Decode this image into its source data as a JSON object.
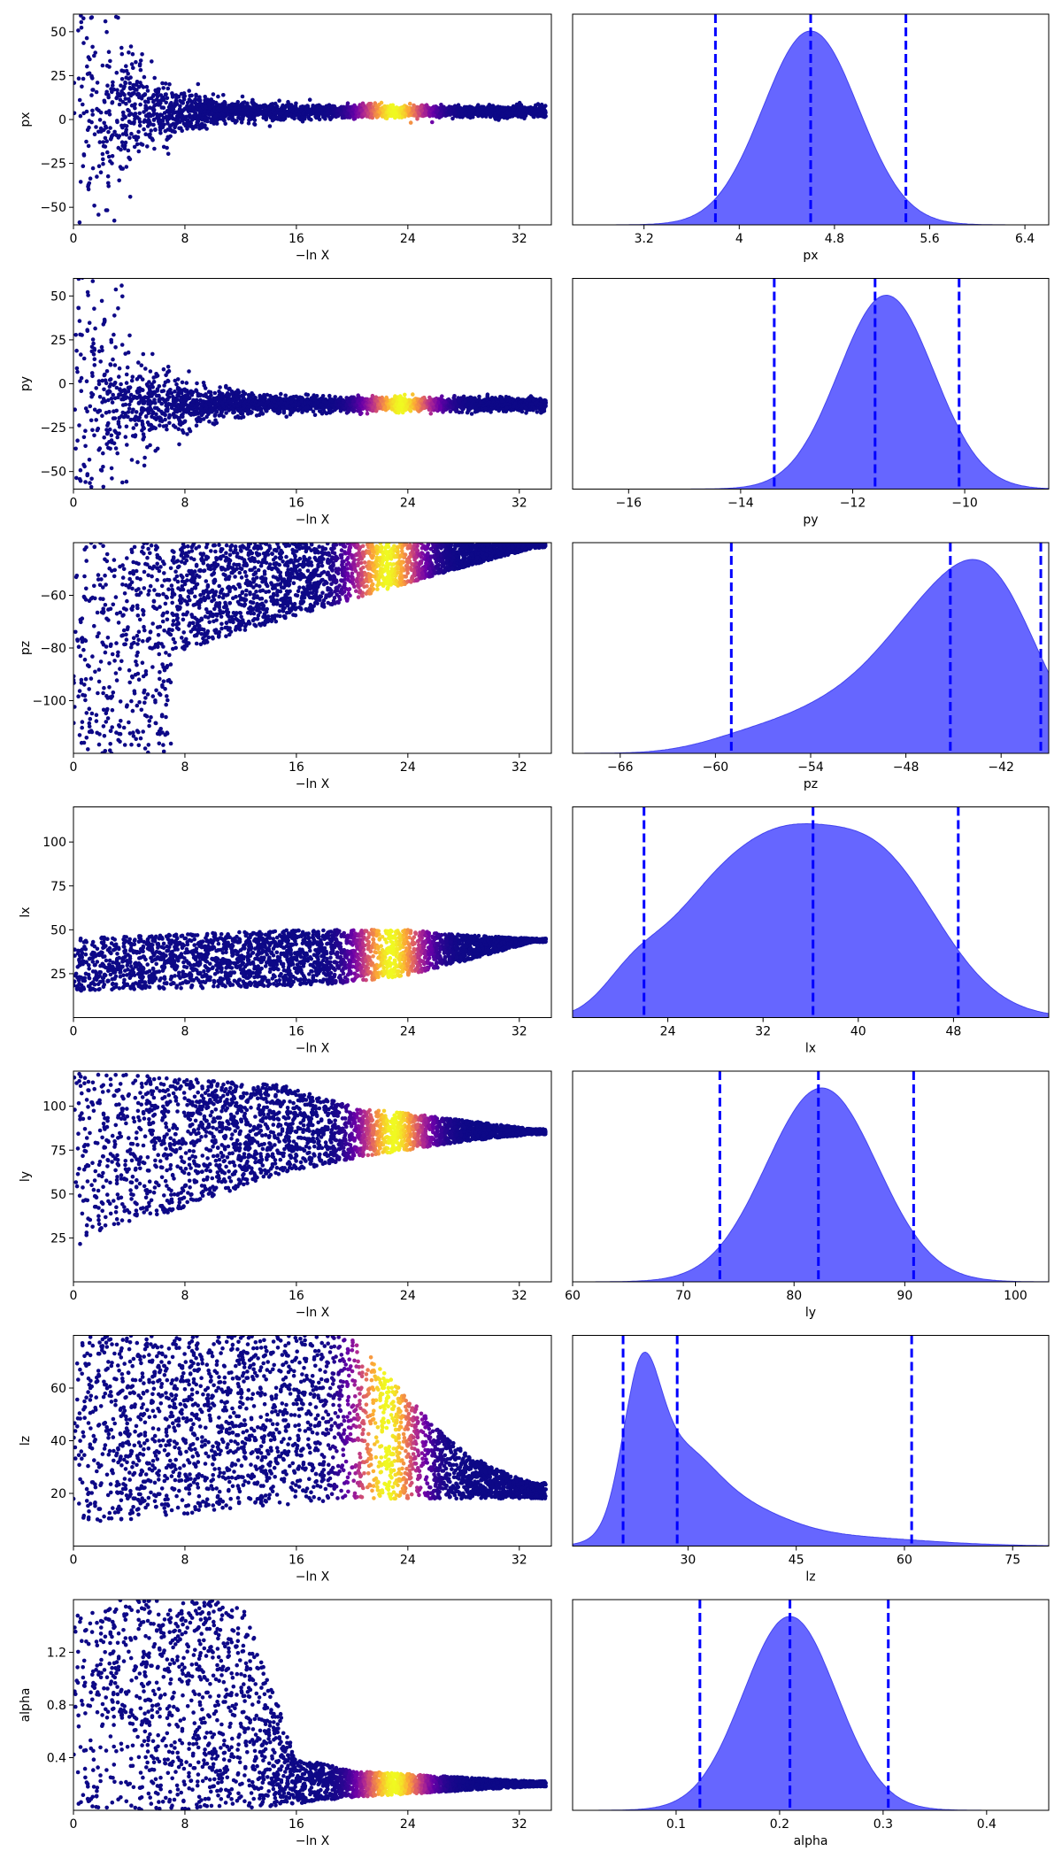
{
  "chart_data": {
    "type": "scatter",
    "description": "Nested sampling trace plots (left) and posterior marginal densities (right)",
    "trace_xlabel": "−ln X",
    "trace_xlim": [
      0,
      34.3
    ],
    "trace_xticks": [
      0,
      8,
      16,
      24,
      32
    ],
    "colormap": [
      "#0d0887",
      "#6a00a8",
      "#b12a90",
      "#e16462",
      "#fca636",
      "#f0f921"
    ],
    "fill_color": "#6666ff",
    "quantile_line_color": "#0000ff",
    "parameters": [
      {
        "name": "px",
        "trace_ylim": [
          -60,
          60
        ],
        "trace_yticks": [
          -50,
          -25,
          0,
          25,
          50
        ],
        "trace_shape": "converge",
        "trace_final": 4.6,
        "trace_final_spread": 1.5,
        "peak_lnx": 23.0,
        "hist_xlim": [
          2.6,
          6.6
        ],
        "hist_xticks": [
          3.2,
          4.0,
          4.8,
          5.6,
          6.4
        ],
        "quantiles": [
          3.8,
          4.6,
          5.4
        ],
        "density_peaks": [
          [
            4.6,
            0.4,
            1.0
          ]
        ]
      },
      {
        "name": "py",
        "trace_ylim": [
          -60,
          60
        ],
        "trace_yticks": [
          -50,
          -25,
          0,
          25,
          50
        ],
        "trace_shape": "converge",
        "trace_final": -11.6,
        "trace_final_spread": 1.8,
        "peak_lnx": 23.5,
        "hist_xlim": [
          -17,
          -8.5
        ],
        "hist_xticks": [
          -16,
          -14,
          -12,
          -10
        ],
        "quantiles": [
          -13.4,
          -11.6,
          -10.1
        ],
        "density_peaks": [
          [
            -11.4,
            0.85,
            1.0
          ]
        ]
      },
      {
        "name": "pz",
        "trace_ylim": [
          -120,
          -40
        ],
        "trace_yticks": [
          -100,
          -80,
          -60
        ],
        "trace_shape": "floor-rise",
        "peak_lnx": 22.5,
        "hist_xlim": [
          -69,
          -39
        ],
        "hist_xticks": [
          -66,
          -60,
          -54,
          -48,
          -42
        ],
        "quantiles": [
          -59,
          -45.2,
          -39.5
        ],
        "density_peaks": [
          [
            -42.5,
            3.0,
            0.85
          ],
          [
            -47,
            3.0,
            0.5
          ],
          [
            -52,
            3.5,
            0.25
          ],
          [
            -58,
            3.0,
            0.08
          ]
        ]
      },
      {
        "name": "lx",
        "trace_ylim": [
          0,
          120
        ],
        "trace_yticks": [
          25,
          50,
          75,
          100
        ],
        "trace_shape": "band",
        "trace_band": [
          [
            0,
            15,
            45
          ],
          [
            16,
            18,
            50
          ],
          [
            20,
            20,
            50
          ],
          [
            24,
            24,
            50
          ],
          [
            28,
            32,
            47
          ],
          [
            33,
            43,
            45
          ]
        ],
        "peak_lnx": 22.8,
        "hist_xlim": [
          16,
          56
        ],
        "hist_xticks": [
          24,
          32,
          40,
          48
        ],
        "quantiles": [
          22,
          36.2,
          48.4
        ],
        "density_peaks": [
          [
            41,
            5.5,
            0.9
          ],
          [
            33,
            4.0,
            0.55
          ],
          [
            27,
            4.0,
            0.5
          ],
          [
            21,
            2.5,
            0.18
          ]
        ]
      },
      {
        "name": "ly",
        "trace_ylim": [
          0,
          120
        ],
        "trace_yticks": [
          25,
          50,
          75,
          100
        ],
        "trace_shape": "band",
        "trace_band": [
          [
            0,
            20,
            120
          ],
          [
            15,
            62,
            112
          ],
          [
            20,
            70,
            100
          ],
          [
            24,
            75,
            96
          ],
          [
            28,
            80,
            92
          ],
          [
            33,
            84,
            87
          ]
        ],
        "peak_lnx": 23.0,
        "hist_xlim": [
          60,
          103
        ],
        "hist_xticks": [
          60,
          70,
          80,
          90,
          100
        ],
        "quantiles": [
          73.3,
          82.2,
          90.8
        ],
        "density_peaks": [
          [
            82.5,
            5.0,
            1.0
          ]
        ]
      },
      {
        "name": "lz",
        "trace_ylim": [
          0,
          80
        ],
        "trace_yticks": [
          20,
          40,
          60
        ],
        "trace_shape": "band",
        "trace_band": [
          [
            0,
            8,
            80
          ],
          [
            20,
            18,
            80
          ],
          [
            23,
            18,
            62
          ],
          [
            27,
            18,
            40
          ],
          [
            30,
            18,
            30
          ],
          [
            33,
            18,
            24
          ]
        ],
        "peak_lnx": 22.5,
        "hist_xlim": [
          14,
          80
        ],
        "hist_xticks": [
          30,
          45,
          60,
          75
        ],
        "quantiles": [
          21,
          28.5,
          61
        ],
        "density_peaks": [
          [
            23.5,
            2.5,
            0.85
          ],
          [
            28,
            5.0,
            0.5
          ],
          [
            36,
            7.0,
            0.22
          ],
          [
            50,
            12.0,
            0.06
          ]
        ]
      },
      {
        "name": "alpha",
        "trace_ylim": [
          0,
          1.6
        ],
        "trace_yticks": [
          0.4,
          0.8,
          1.2
        ],
        "trace_shape": "band",
        "trace_band": [
          [
            0,
            0.0,
            1.6
          ],
          [
            12,
            0.0,
            1.6
          ],
          [
            16,
            0.05,
            0.4
          ],
          [
            20,
            0.1,
            0.3
          ],
          [
            28,
            0.15,
            0.25
          ],
          [
            33,
            0.18,
            0.22
          ]
        ],
        "peak_lnx": 23.0,
        "hist_xlim": [
          0.0,
          0.46
        ],
        "hist_xticks": [
          0.1,
          0.2,
          0.3,
          0.4
        ],
        "quantiles": [
          0.123,
          0.21,
          0.305
        ],
        "density_peaks": [
          [
            0.21,
            0.045,
            1.0
          ]
        ]
      }
    ]
  }
}
